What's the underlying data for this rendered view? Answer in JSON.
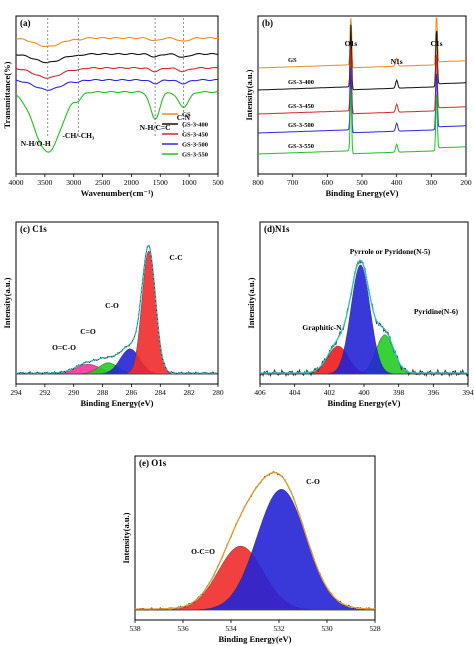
{
  "figure": {
    "panels": [
      {
        "id": "a",
        "label": "(a)",
        "xlabel": "Wavenumber(cm⁻¹)",
        "ylabel": "Transmittance(%)",
        "xticks": [
          "4000",
          "3500",
          "3000",
          "2500",
          "2000",
          "1500",
          "1000",
          "500"
        ],
        "annotations": [
          "N-H/O-H",
          "-CH/-CH₃",
          "N-H/C=C",
          "C-N"
        ],
        "legend": [
          "GS",
          "GS-3-400",
          "GS-3-450",
          "GS-3-500",
          "GS-3-550"
        ]
      },
      {
        "id": "b",
        "label": "(b)",
        "xlabel": "Binding Energy(eV)",
        "ylabel": "Intensity(a.u.)",
        "xticks": [
          "800",
          "700",
          "600",
          "500",
          "400",
          "300",
          "200"
        ],
        "annotations": [
          "O1s",
          "N1s",
          "C1s"
        ],
        "series_labels": [
          "GS",
          "GS-3-400",
          "GS-3-450",
          "GS-3-500",
          "GS-3-550"
        ]
      },
      {
        "id": "c",
        "label": "(c) C1s",
        "xlabel": "Binding Energy(eV)",
        "ylabel": "Intensity(a.u.)",
        "xticks": [
          "294",
          "292",
          "290",
          "288",
          "286",
          "284",
          "282",
          "280"
        ],
        "annotations": [
          "C-C",
          "C-O",
          "C=O",
          "O=C-O"
        ]
      },
      {
        "id": "d",
        "label": "(d)N1s",
        "xlabel": "Binding Energy(eV)",
        "ylabel": "Intensity(a.u.)",
        "xticks": [
          "406",
          "404",
          "402",
          "400",
          "398",
          "396",
          "394"
        ],
        "annotations": [
          "Pyrrole or Pyridone(N-5)",
          "Graphitic-N",
          "Pyridine(N-6)"
        ]
      },
      {
        "id": "e",
        "label": "(e) O1s",
        "xlabel": "Binding Energy(eV)",
        "ylabel": "Intensity(a.u.)",
        "xticks": [
          "538",
          "536",
          "534",
          "532",
          "530",
          "528"
        ],
        "annotations": [
          "C-O",
          "O-C=O"
        ]
      }
    ]
  },
  "chart_data": [
    {
      "type": "line",
      "title": "",
      "xlabel": "Wavenumber(cm⁻¹)",
      "ylabel": "Transmittance(%)",
      "xlim": [
        4000,
        500
      ],
      "colors": {
        "GS": "#f08c1e",
        "GS-3-400": "#111111",
        "GS-3-450": "#d62828",
        "GS-3-500": "#2a2ae0",
        "GS-3-550": "#1fc21f"
      },
      "series": [
        {
          "name": "GS",
          "dips": [
            {
              "x": 3450,
              "depth": 0.3
            },
            {
              "x": 2920,
              "depth": 0.05
            },
            {
              "x": 1590,
              "depth": 0.1
            },
            {
              "x": 1100,
              "depth": 0.12
            }
          ]
        },
        {
          "name": "GS-3-400",
          "dips": [
            {
              "x": 3450,
              "depth": 0.3
            },
            {
              "x": 2920,
              "depth": 0.05
            },
            {
              "x": 1590,
              "depth": 0.1
            },
            {
              "x": 1100,
              "depth": 0.12
            }
          ]
        },
        {
          "name": "GS-3-450",
          "dips": [
            {
              "x": 3450,
              "depth": 0.35
            },
            {
              "x": 2920,
              "depth": 0.05
            },
            {
              "x": 1590,
              "depth": 0.12
            },
            {
              "x": 1100,
              "depth": 0.12
            }
          ]
        },
        {
          "name": "GS-3-500",
          "dips": [
            {
              "x": 3450,
              "depth": 0.35
            },
            {
              "x": 2920,
              "depth": 0.05
            },
            {
              "x": 1590,
              "depth": 0.12
            },
            {
              "x": 1100,
              "depth": 0.12
            }
          ]
        },
        {
          "name": "GS-3-550",
          "dips": [
            {
              "x": 3450,
              "depth": 1.0
            },
            {
              "x": 2920,
              "depth": 0.08
            },
            {
              "x": 1590,
              "depth": 0.45
            },
            {
              "x": 1100,
              "depth": 0.25
            }
          ]
        }
      ],
      "annotations": [
        {
          "text": "N-H/O-H",
          "x": 3450
        },
        {
          "text": "-CH/-CH₃",
          "x": 2920
        },
        {
          "text": "N-H/C=C",
          "x": 1590
        },
        {
          "text": "C-N",
          "x": 1100
        }
      ],
      "legend_position": "bottom-right"
    },
    {
      "type": "line",
      "title": "",
      "xlabel": "Binding Energy(eV)",
      "ylabel": "Intensity(a.u.)",
      "xlim": [
        800,
        200
      ],
      "colors": {
        "GS": "#f08c1e",
        "GS-3-400": "#111111",
        "GS-3-450": "#d62828",
        "GS-3-500": "#2a2ae0",
        "GS-3-550": "#1fc21f"
      },
      "peaks": [
        {
          "name": "O1s",
          "x": 532
        },
        {
          "name": "N1s",
          "x": 400
        },
        {
          "name": "C1s",
          "x": 285
        }
      ],
      "series": [
        {
          "name": "GS"
        },
        {
          "name": "GS-3-400"
        },
        {
          "name": "GS-3-450"
        },
        {
          "name": "GS-3-500"
        },
        {
          "name": "GS-3-550"
        }
      ]
    },
    {
      "type": "area",
      "title": "C1s",
      "xlabel": "Binding Energy(eV)",
      "ylabel": "Intensity(a.u.)",
      "xlim": [
        294,
        280
      ],
      "components": [
        {
          "name": "C-C",
          "center": 284.8,
          "height": 0.88,
          "fwhm": 1.1,
          "color": "#ee2b2b"
        },
        {
          "name": "C-O",
          "center": 286.1,
          "height": 0.18,
          "fwhm": 1.6,
          "color": "#2323d6"
        },
        {
          "name": "C=O",
          "center": 287.6,
          "height": 0.08,
          "fwhm": 1.6,
          "color": "#22cc22"
        },
        {
          "name": "O=C-O",
          "center": 289.0,
          "height": 0.07,
          "fwhm": 2.0,
          "color": "#ff3399"
        }
      ]
    },
    {
      "type": "area",
      "title": "N1s",
      "xlabel": "Binding Energy(eV)",
      "ylabel": "Intensity(a.u.)",
      "xlim": [
        406,
        394
      ],
      "components": [
        {
          "name": "Pyrrole or Pyridone(N-5)",
          "center": 400.2,
          "height": 0.78,
          "fwhm": 1.3,
          "color": "#2323d6"
        },
        {
          "name": "Graphitic-N",
          "center": 401.5,
          "height": 0.2,
          "fwhm": 1.4,
          "color": "#ee1b1b"
        },
        {
          "name": "Pyridine(N-6)",
          "center": 398.8,
          "height": 0.28,
          "fwhm": 1.2,
          "color": "#22cc22"
        }
      ]
    },
    {
      "type": "area",
      "title": "O1s",
      "xlabel": "Binding Energy(eV)",
      "ylabel": "Intensity(a.u.)",
      "xlim": [
        538,
        528
      ],
      "components": [
        {
          "name": "C-O",
          "center": 531.9,
          "height": 0.85,
          "fwhm": 2.4,
          "color": "#2323d6"
        },
        {
          "name": "O-C=O",
          "center": 533.6,
          "height": 0.45,
          "fwhm": 2.2,
          "color": "#ee2b2b"
        }
      ]
    }
  ]
}
